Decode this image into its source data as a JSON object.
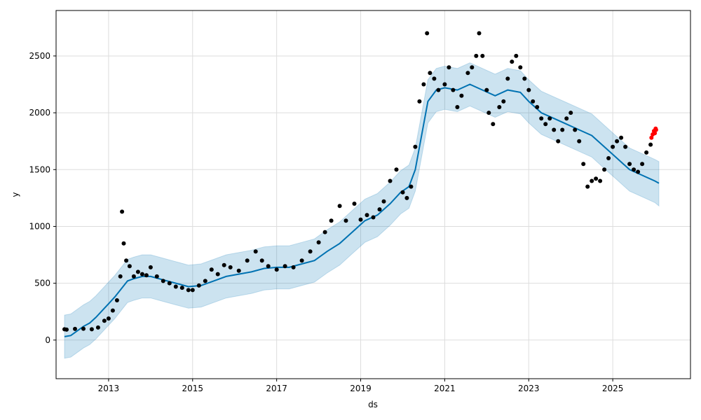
{
  "chart_data": {
    "type": "scatter",
    "xlabel": "ds",
    "ylabel": "y",
    "xlim": [
      2011.75,
      2026.85
    ],
    "ylim": [
      -340,
      2900
    ],
    "x_ticks": [
      2013,
      2015,
      2017,
      2019,
      2021,
      2023,
      2025
    ],
    "x_tick_labels": [
      "2013",
      "2015",
      "2017",
      "2019",
      "2021",
      "2023",
      "2025"
    ],
    "y_ticks": [
      0,
      500,
      1000,
      1500,
      2000,
      2500
    ],
    "y_tick_labels": [
      "0",
      "500",
      "1000",
      "1500",
      "2000",
      "2500"
    ],
    "grid": true,
    "colors": {
      "observed": "#000000",
      "forecast_line": "#0072B2",
      "uncertainty_band": "#0072B2",
      "recent_points": "#ff0000",
      "grid": "#dddddd"
    },
    "series": [
      {
        "kind": "observed",
        "x": [
          2011.95,
          2012.0,
          2012.2,
          2012.4,
          2012.6,
          2012.75,
          2012.9,
          2013.0,
          2013.1,
          2013.2,
          2013.28,
          2013.32,
          2013.36,
          2013.42,
          2013.5,
          2013.6,
          2013.7,
          2013.8,
          2013.9,
          2014.0,
          2014.15,
          2014.3,
          2014.45,
          2014.6,
          2014.75,
          2014.9,
          2015.0,
          2015.15,
          2015.3,
          2015.45,
          2015.6,
          2015.75,
          2015.9,
          2016.1,
          2016.3,
          2016.5,
          2016.65,
          2016.8,
          2017.0,
          2017.2,
          2017.4,
          2017.6,
          2017.8,
          2018.0,
          2018.15,
          2018.3,
          2018.5,
          2018.65,
          2018.85,
          2019.0,
          2019.15,
          2019.3,
          2019.45,
          2019.55,
          2019.7,
          2019.85,
          2020.0,
          2020.1,
          2020.2,
          2020.3,
          2020.4,
          2020.5,
          2020.58,
          2020.65,
          2020.75,
          2020.85,
          2021.0,
          2021.1,
          2021.2,
          2021.3,
          2021.4,
          2021.55,
          2021.65,
          2021.75,
          2021.82,
          2021.9,
          2022.0,
          2022.05,
          2022.15,
          2022.3,
          2022.4,
          2022.5,
          2022.6,
          2022.7,
          2022.8,
          2022.9,
          2023.0,
          2023.1,
          2023.2,
          2023.3,
          2023.4,
          2023.5,
          2023.6,
          2023.7,
          2023.8,
          2023.9,
          2024.0,
          2024.1,
          2024.2,
          2024.3,
          2024.4,
          2024.5,
          2024.6,
          2024.7,
          2024.8,
          2024.9,
          2025.0,
          2025.1,
          2025.2,
          2025.3,
          2025.4,
          2025.5,
          2025.6,
          2025.7,
          2025.8,
          2025.9
        ],
        "y": [
          95,
          92,
          98,
          100,
          95,
          110,
          170,
          190,
          260,
          350,
          560,
          1130,
          850,
          700,
          650,
          560,
          600,
          580,
          570,
          640,
          560,
          520,
          500,
          470,
          460,
          440,
          440,
          480,
          520,
          620,
          580,
          660,
          640,
          610,
          700,
          780,
          700,
          650,
          620,
          650,
          640,
          700,
          780,
          860,
          950,
          1050,
          1180,
          1050,
          1200,
          1060,
          1100,
          1080,
          1150,
          1220,
          1400,
          1500,
          1300,
          1250,
          1350,
          1700,
          2100,
          2250,
          2700,
          2350,
          2300,
          2200,
          2250,
          2400,
          2200,
          2050,
          2150,
          2350,
          2400,
          2500,
          2700,
          2500,
          2200,
          2000,
          1900,
          2050,
          2100,
          2300,
          2450,
          2500,
          2400,
          2300,
          2200,
          2100,
          2050,
          1950,
          1900,
          1950,
          1850,
          1750,
          1850,
          1950,
          2000,
          1850,
          1750,
          1550,
          1350,
          1400,
          1420,
          1400,
          1500,
          1600,
          1700,
          1750,
          1780,
          1700,
          1550,
          1500,
          1480,
          1550,
          1650,
          1720
        ]
      },
      {
        "kind": "recent",
        "x": [
          2025.92,
          2025.95,
          2025.98,
          2026.0,
          2026.02,
          2026.03
        ],
        "y": [
          1780,
          1810,
          1840,
          1820,
          1860,
          1850
        ]
      },
      {
        "kind": "forecast",
        "x": [
          2011.95,
          2012.1,
          2012.25,
          2012.4,
          2012.55,
          2012.7,
          2012.85,
          2013.0,
          2013.15,
          2013.3,
          2013.45,
          2013.6,
          2013.8,
          2014.0,
          2014.3,
          2014.6,
          2014.9,
          2015.2,
          2015.5,
          2015.8,
          2016.1,
          2016.4,
          2016.7,
          2017.0,
          2017.3,
          2017.6,
          2017.9,
          2018.2,
          2018.5,
          2018.8,
          2019.1,
          2019.4,
          2019.7,
          2019.95,
          2020.15,
          2020.3,
          2020.45,
          2020.6,
          2020.8,
          2021.0,
          2021.3,
          2021.6,
          2021.9,
          2022.2,
          2022.5,
          2022.8,
          2023.0,
          2023.3,
          2023.6,
          2023.9,
          2024.2,
          2024.5,
          2024.8,
          2025.1,
          2025.4,
          2025.7,
          2026.0,
          2026.1
        ],
        "yhat": [
          30,
          40,
          80,
          120,
          150,
          200,
          260,
          320,
          380,
          450,
          520,
          540,
          560,
          560,
          530,
          500,
          470,
          480,
          520,
          560,
          580,
          600,
          630,
          640,
          640,
          670,
          700,
          780,
          850,
          950,
          1050,
          1100,
          1200,
          1300,
          1350,
          1500,
          1800,
          2100,
          2200,
          2220,
          2200,
          2250,
          2200,
          2150,
          2200,
          2180,
          2100,
          2000,
          1950,
          1900,
          1850,
          1800,
          1700,
          1600,
          1500,
          1450,
          1400,
          1380
        ],
        "lower": [
          -160,
          -150,
          -110,
          -70,
          -40,
          10,
          70,
          130,
          190,
          260,
          330,
          350,
          370,
          370,
          340,
          310,
          280,
          290,
          330,
          370,
          390,
          410,
          440,
          450,
          450,
          480,
          510,
          590,
          660,
          760,
          860,
          910,
          1010,
          1110,
          1160,
          1310,
          1610,
          1910,
          2010,
          2030,
          2010,
          2060,
          2010,
          1960,
          2010,
          1990,
          1910,
          1810,
          1760,
          1710,
          1660,
          1610,
          1510,
          1410,
          1310,
          1260,
          1210,
          1180
        ],
        "upper": [
          220,
          230,
          270,
          310,
          340,
          390,
          450,
          510,
          570,
          640,
          710,
          730,
          750,
          750,
          720,
          690,
          660,
          670,
          710,
          750,
          770,
          790,
          820,
          830,
          830,
          860,
          890,
          970,
          1040,
          1140,
          1240,
          1290,
          1390,
          1490,
          1540,
          1690,
          1990,
          2290,
          2390,
          2410,
          2390,
          2440,
          2390,
          2340,
          2390,
          2370,
          2290,
          2190,
          2140,
          2090,
          2040,
          1990,
          1890,
          1790,
          1690,
          1640,
          1590,
          1570
        ]
      }
    ]
  }
}
